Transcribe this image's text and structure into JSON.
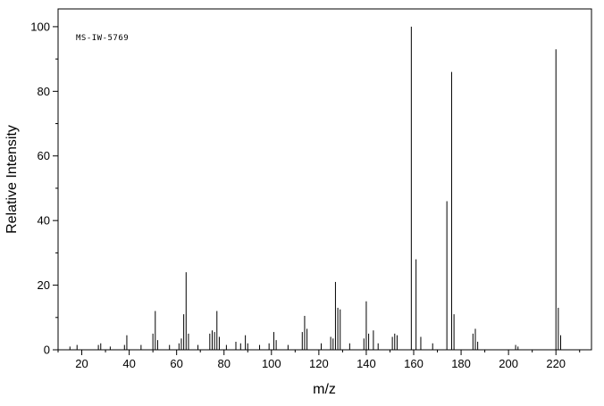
{
  "chart_data": {
    "type": "bar",
    "chart_kind": "mass-spectrum",
    "annotation": "MS-IW-5769",
    "title": "",
    "xlabel": "m/z",
    "ylabel": "Relative Intensity",
    "xlim": [
      10,
      235
    ],
    "ylim": [
      0,
      105.5
    ],
    "xticks": [
      20,
      40,
      60,
      80,
      100,
      120,
      140,
      160,
      180,
      200,
      220
    ],
    "yticks": [
      0,
      20,
      40,
      60,
      80,
      100
    ],
    "minor_x_step": 10,
    "minor_y_step": 10,
    "grid": false,
    "legend": false,
    "bar_color": "#000000",
    "peaks": [
      [
        15,
        1
      ],
      [
        18,
        1.5
      ],
      [
        27,
        1.5
      ],
      [
        28,
        2
      ],
      [
        32,
        1
      ],
      [
        38,
        1.5
      ],
      [
        39,
        4.5
      ],
      [
        45,
        1.5
      ],
      [
        50,
        5
      ],
      [
        51,
        12
      ],
      [
        52,
        3
      ],
      [
        57,
        1.5
      ],
      [
        61,
        2
      ],
      [
        62,
        3.5
      ],
      [
        63,
        11
      ],
      [
        64,
        24
      ],
      [
        65,
        5
      ],
      [
        69,
        1.5
      ],
      [
        74,
        5
      ],
      [
        75,
        6
      ],
      [
        76,
        5.5
      ],
      [
        77,
        12
      ],
      [
        78,
        4
      ],
      [
        81,
        1.5
      ],
      [
        85,
        2.5
      ],
      [
        87,
        2
      ],
      [
        89,
        4.5
      ],
      [
        90,
        2
      ],
      [
        95,
        1.5
      ],
      [
        99,
        2
      ],
      [
        101,
        5.5
      ],
      [
        102,
        3
      ],
      [
        107,
        1.5
      ],
      [
        113,
        5.5
      ],
      [
        114,
        10.5
      ],
      [
        115,
        6.5
      ],
      [
        121,
        2
      ],
      [
        125,
        4
      ],
      [
        126,
        3.5
      ],
      [
        127,
        21
      ],
      [
        128,
        13
      ],
      [
        129,
        12.5
      ],
      [
        133,
        2
      ],
      [
        139,
        3.5
      ],
      [
        140,
        15
      ],
      [
        141,
        5
      ],
      [
        143,
        6
      ],
      [
        145,
        2
      ],
      [
        151,
        4
      ],
      [
        152,
        5
      ],
      [
        153,
        4.5
      ],
      [
        159,
        100
      ],
      [
        161,
        28
      ],
      [
        163,
        4
      ],
      [
        168,
        2
      ],
      [
        174,
        46
      ],
      [
        176,
        86
      ],
      [
        177,
        11
      ],
      [
        185,
        5
      ],
      [
        186,
        6.5
      ],
      [
        187,
        2.5
      ],
      [
        203,
        1.5
      ],
      [
        204,
        1
      ],
      [
        220,
        93
      ],
      [
        221,
        13
      ],
      [
        222,
        4.5
      ]
    ]
  }
}
